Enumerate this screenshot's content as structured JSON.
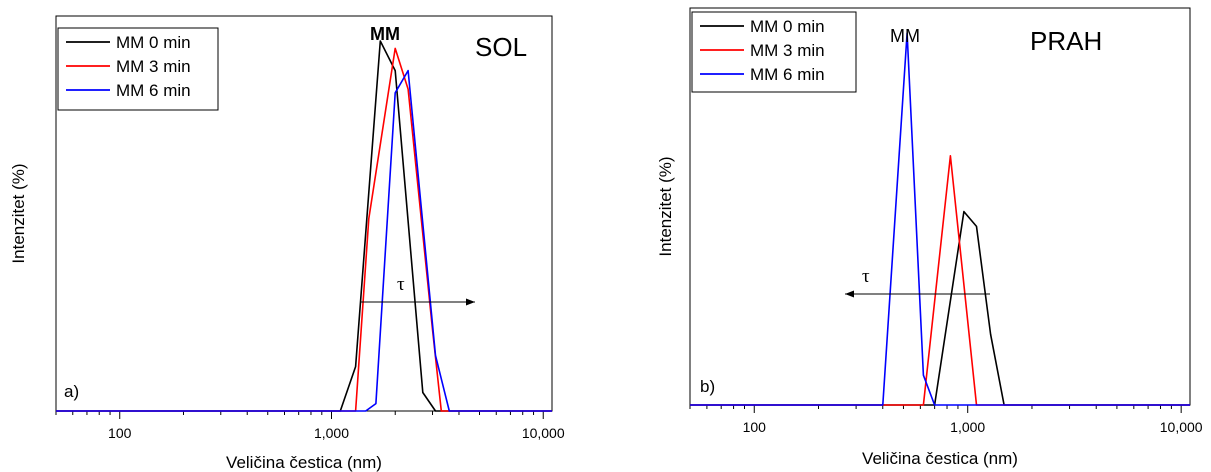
{
  "chart_data": [
    {
      "type": "line",
      "panel_label": "a)",
      "annotation_main": "SOL",
      "annotation_peak": "MM",
      "annotation_arrow": "τ",
      "arrow_direction": "right",
      "xlabel": "Veličina čestica (nm)",
      "ylabel": "Intenzitet (%)",
      "x_scale": "log",
      "xlim": [
        50,
        11000
      ],
      "ylim": [
        0,
        100
      ],
      "xticks": [
        100,
        1000,
        10000
      ],
      "xtick_labels": [
        "100",
        "1,000",
        "10,000"
      ],
      "yticks_shown": false,
      "legend_position": "top-left",
      "series": [
        {
          "name": "MM 0 min",
          "color": "#000000",
          "x": [
            50,
            1100,
            1300,
            1700,
            2000,
            2700,
            3100,
            11000
          ],
          "y": [
            0,
            0,
            12,
            100,
            92,
            5,
            0,
            0
          ]
        },
        {
          "name": "MM 3 min",
          "color": "#ff0000",
          "x": [
            50,
            1300,
            1500,
            2000,
            2300,
            3000,
            3300,
            11000
          ],
          "y": [
            0,
            0,
            52,
            98,
            87,
            22,
            0,
            0
          ]
        },
        {
          "name": "MM 6 min",
          "color": "#0000ff",
          "x": [
            50,
            1450,
            1620,
            2000,
            2300,
            3100,
            3600,
            11000
          ],
          "y": [
            0,
            0,
            2,
            86,
            92,
            15,
            0,
            0
          ]
        }
      ]
    },
    {
      "type": "line",
      "panel_label": "b)",
      "annotation_main": "PRAH",
      "annotation_peak": "MM",
      "annotation_arrow": "τ",
      "arrow_direction": "left",
      "xlabel": "Veličina čestica (nm)",
      "ylabel": "Intenzitet (%)",
      "x_scale": "log",
      "xlim": [
        50,
        11000
      ],
      "ylim": [
        0,
        100
      ],
      "xticks": [
        100,
        1000,
        10000
      ],
      "xtick_labels": [
        "100",
        "1,000",
        "10,000"
      ],
      "yticks_shown": false,
      "legend_position": "top-left",
      "series": [
        {
          "name": "MM 0 min",
          "color": "#000000",
          "x": [
            50,
            700,
            960,
            1100,
            1280,
            1480,
            11000
          ],
          "y": [
            0,
            0,
            52,
            48,
            19,
            0,
            0
          ]
        },
        {
          "name": "MM 3 min",
          "color": "#ff0000",
          "x": [
            50,
            620,
            830,
            1100,
            11000
          ],
          "y": [
            0,
            0,
            67,
            0,
            0
          ]
        },
        {
          "name": "MM 6 min",
          "color": "#0000ff",
          "x": [
            50,
            400,
            520,
            620,
            700,
            11000
          ],
          "y": [
            0,
            0,
            100,
            8,
            0,
            0
          ]
        }
      ]
    }
  ]
}
